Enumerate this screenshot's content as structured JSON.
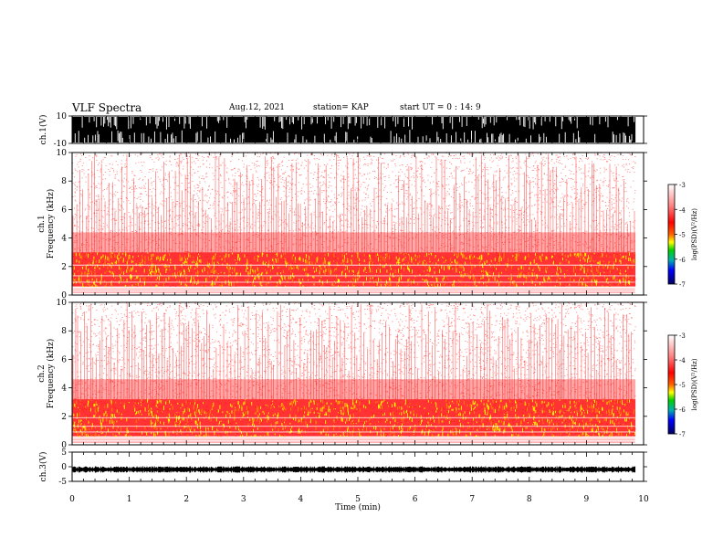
{
  "header": {
    "title": "VLF Spectra",
    "date": "Aug.12, 2021",
    "station": "station= KAP",
    "start": "start  UT =   0  : 14: 9"
  },
  "chart_data": [
    {
      "type": "line",
      "panel": "ch1-waveform",
      "ylabel": "ch.1(V)",
      "ylim": [
        -10,
        10
      ],
      "yticks": [
        "10",
        "-10"
      ],
      "xlim": [
        0,
        10
      ],
      "data_end_min": 9.85,
      "saturated": true
    },
    {
      "type": "heatmap",
      "panel": "ch1-spectrogram",
      "ylabel": "ch.1\nFrequency (kHz)",
      "ylabel_lines": [
        "ch.1",
        "Frequency  (kHz)"
      ],
      "ylim": [
        0,
        10
      ],
      "yticks": [
        "0",
        "2",
        "4",
        "6",
        "8",
        "10"
      ],
      "xlim": [
        0,
        10
      ],
      "data_end_min": 9.85,
      "colorbar": {
        "label": "log(PSD)(V²/Hz)",
        "ticks": [
          "-3",
          "-4",
          "-5",
          "-6",
          "-7"
        ],
        "range": [
          -7,
          -3
        ]
      },
      "band_kHz": [
        0.6,
        3.0
      ],
      "lines_kHz": [
        2.1,
        1.35,
        0.9,
        0.55,
        0.35,
        0.2
      ]
    },
    {
      "type": "heatmap",
      "panel": "ch2-spectrogram",
      "ylabel": "ch.2\nFrequency (kHz)",
      "ylabel_lines": [
        "ch.2",
        "Frequency  (kHz)"
      ],
      "ylim": [
        0,
        10
      ],
      "yticks": [
        "0",
        "2",
        "4",
        "6",
        "8",
        "10"
      ],
      "xlim": [
        0,
        10
      ],
      "data_end_min": 9.85,
      "colorbar": {
        "label": "log(PSD)(V²/Hz)",
        "ticks": [
          "-3",
          "-4",
          "-5",
          "-6",
          "-7"
        ],
        "range": [
          -7,
          -3
        ]
      },
      "band_kHz": [
        0.6,
        3.2
      ],
      "lines_kHz": [
        1.9,
        1.3,
        0.9,
        0.55,
        0.3
      ]
    },
    {
      "type": "line",
      "panel": "ch3-waveform",
      "ylabel": "ch.3(V)",
      "ylim": [
        -5,
        5
      ],
      "yticks": [
        "5",
        "0",
        "-5"
      ],
      "xlim": [
        0,
        10
      ],
      "data_end_min": 9.85,
      "baseline_V": 0
    }
  ],
  "xaxis": {
    "label": "Time  (min)",
    "ticks": [
      "0",
      "1",
      "2",
      "3",
      "4",
      "5",
      "6",
      "7",
      "8",
      "9",
      "10"
    ]
  },
  "colors": {
    "red": "#ff0000",
    "yellow": "#ffff00",
    "green": "#00d000",
    "blue": "#0000ff",
    "navy": "#000060"
  }
}
